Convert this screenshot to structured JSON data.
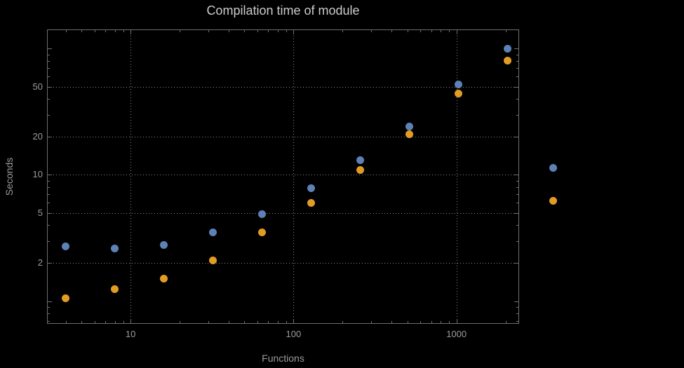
{
  "title": "Compilation time of module",
  "xlabel": "Functions",
  "ylabel": "Seconds",
  "colors": {
    "background": "#000000",
    "blue": "#5e81b5",
    "orange": "#e19c24",
    "grid": "#8a8a8a",
    "frame": "#6f6f6f",
    "title_text": "#cbcbcb",
    "label_text": "#9b9b9b"
  },
  "axes": {
    "x": {
      "scale": "log",
      "min": 3.1,
      "max": 2400,
      "gridlines": [
        10,
        100,
        1000
      ],
      "tick_values": [
        10,
        100,
        1000
      ],
      "tick_labels": [
        "10",
        "100",
        "1000"
      ]
    },
    "y": {
      "scale": "log",
      "min": 0.67,
      "max": 140,
      "gridlines": [
        2,
        5,
        10,
        20,
        50
      ],
      "tick_values": [
        2,
        5,
        10,
        20,
        50
      ],
      "tick_labels": [
        "2",
        "5",
        "10",
        "20",
        "50"
      ]
    }
  },
  "legend": {
    "markers": [
      {
        "series": "blue",
        "color": "#5e81b5"
      },
      {
        "series": "orange",
        "color": "#e19c24"
      }
    ]
  },
  "chart_data": {
    "type": "scatter",
    "title": "Compilation time of module",
    "xlabel": "Functions",
    "ylabel": "Seconds",
    "x_scale": "log",
    "y_scale": "log",
    "grid": "dotted",
    "legend_position": "right",
    "x": [
      4,
      8,
      16,
      32,
      64,
      128,
      256,
      512,
      1024,
      2048
    ],
    "series": [
      {
        "name": "blue",
        "color": "#5e81b5",
        "values": [
          2.7,
          2.6,
          2.8,
          3.5,
          4.9,
          7.8,
          13,
          24,
          52,
          100
        ]
      },
      {
        "name": "orange",
        "color": "#e19c24",
        "values": [
          1.05,
          1.25,
          1.5,
          2.1,
          3.5,
          6.0,
          11,
          21,
          44,
          80
        ]
      }
    ],
    "x_range": [
      3.1,
      2400
    ],
    "y_range": [
      0.67,
      140
    ]
  }
}
